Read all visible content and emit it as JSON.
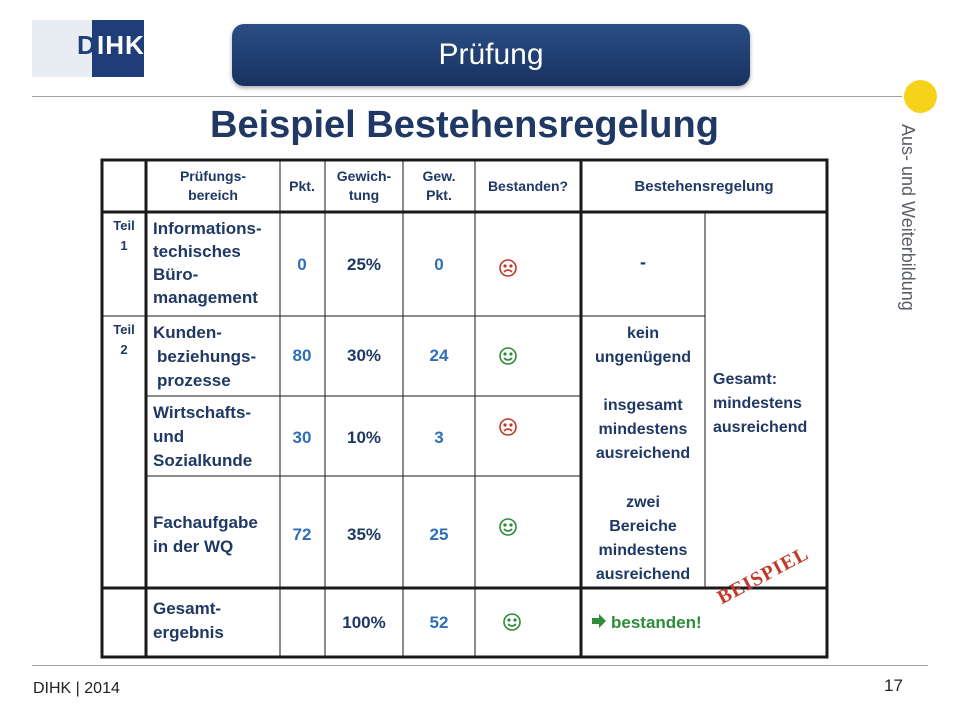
{
  "logo": {
    "text_left": "D",
    "text_right": "IHK"
  },
  "title": "Prüfung",
  "side_label": "Aus- und Weiterbildung",
  "heading": "Beispiel Bestehensregelung",
  "footer": "DIHK | 2014",
  "page_number": "17",
  "table": {
    "headers": {
      "bereich": [
        "Prüfungs-",
        "bereich"
      ],
      "pkt": "Pkt.",
      "gewichtung": [
        "Gewich-",
        "tung"
      ],
      "gewpkt": [
        "Gew.",
        "Pkt."
      ],
      "bestanden": "Bestanden?",
      "regel": "Bestehensregelung"
    },
    "teil1": [
      "Teil",
      "1"
    ],
    "teil2": [
      "Teil",
      "2"
    ],
    "rows": [
      {
        "bereich": [
          "Informations-",
          "techisches",
          "Büro-",
          "management"
        ],
        "pkt": "0",
        "gew": "25%",
        "gewpkt": "0",
        "status": "sad"
      },
      {
        "bereich": [
          "Kunden-",
          "beziehungs-",
          "prozesse"
        ],
        "pkt": "80",
        "gew": "30%",
        "gewpkt": "24",
        "status": "happy"
      },
      {
        "bereich": [
          "Wirtschafts-",
          "und",
          "Sozialkunde"
        ],
        "pkt": "30",
        "gew": "10%",
        "gewpkt": "3",
        "status": "sad"
      },
      {
        "bereich": [
          "Fachaufgabe",
          "in der WQ"
        ],
        "pkt": "72",
        "gew": "35%",
        "gewpkt": "25",
        "status": "happy"
      }
    ],
    "total": {
      "bereich": [
        "Gesamt-",
        "ergebnis"
      ],
      "gew": "100%",
      "gewpkt": "52",
      "status": "happy"
    },
    "rule_teil1": "-",
    "rule_teil2": [
      "kein",
      "ungenügend",
      "",
      "insgesamt",
      "mindestens",
      "ausreichend",
      "",
      "zwei",
      "Bereiche",
      "mindestens",
      "ausreichend"
    ],
    "rule_gesamt": [
      "Gesamt:",
      "mindestens",
      "ausreichend"
    ],
    "stamp": "BEISPIEL",
    "result": "bestanden!"
  },
  "colors": {
    "navy": "#1f3864",
    "blue": "#2e6fb7",
    "red": "#c0392b",
    "green": "#2e8b3a",
    "yellow": "#f6d21a"
  }
}
